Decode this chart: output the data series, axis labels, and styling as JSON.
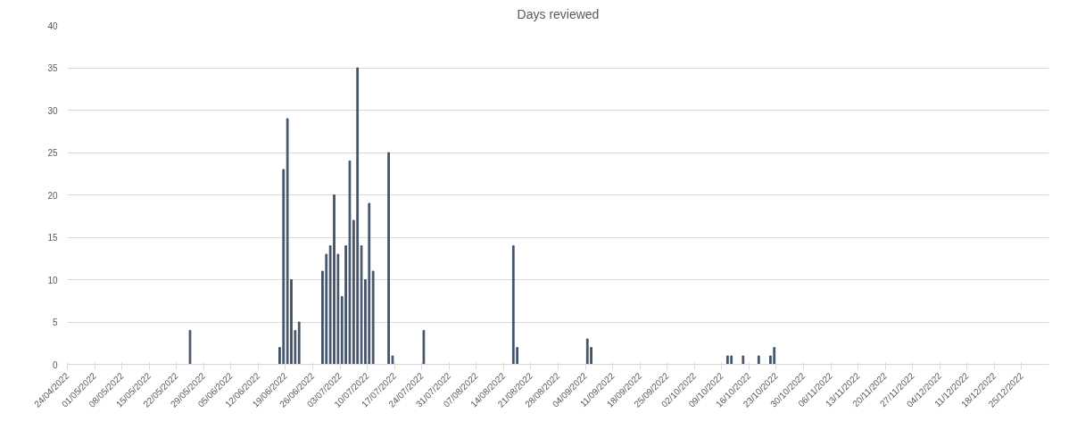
{
  "chart_data": {
    "type": "bar",
    "title": "Days reviewed",
    "x": [
      "2022-05-25",
      "2022-06-17",
      "2022-06-18",
      "2022-06-19",
      "2022-06-20",
      "2022-06-21",
      "2022-06-22",
      "2022-06-28",
      "2022-06-29",
      "2022-06-30",
      "2022-07-01",
      "2022-07-02",
      "2022-07-03",
      "2022-07-04",
      "2022-07-05",
      "2022-07-06",
      "2022-07-07",
      "2022-07-08",
      "2022-07-09",
      "2022-07-10",
      "2022-07-11",
      "2022-07-15",
      "2022-07-16",
      "2022-07-24",
      "2022-08-16",
      "2022-08-17",
      "2022-09-04",
      "2022-09-05",
      "2022-10-10",
      "2022-10-11",
      "2022-10-14",
      "2022-10-18",
      "2022-10-21",
      "2022-10-22"
    ],
    "values": [
      4,
      2,
      23,
      29,
      10,
      4,
      5,
      11,
      13,
      14,
      20,
      13,
      8,
      14,
      24,
      17,
      35,
      14,
      10,
      19,
      11,
      25,
      1,
      4,
      14,
      2,
      3,
      2,
      1,
      1,
      1,
      1,
      1,
      2
    ],
    "color": "#44546a",
    "xlim": [
      "2022-04-24",
      "2023-01-01"
    ],
    "xticks": [
      {
        "value": "2022-04-24",
        "label": "24/04/2022"
      },
      {
        "value": "2022-05-01",
        "label": "01/05/2022"
      },
      {
        "value": "2022-05-08",
        "label": "08/05/2022"
      },
      {
        "value": "2022-05-15",
        "label": "15/05/2022"
      },
      {
        "value": "2022-05-22",
        "label": "22/05/2022"
      },
      {
        "value": "2022-05-29",
        "label": "29/05/2022"
      },
      {
        "value": "2022-06-05",
        "label": "05/06/2022"
      },
      {
        "value": "2022-06-12",
        "label": "12/06/2022"
      },
      {
        "value": "2022-06-19",
        "label": "19/06/2022"
      },
      {
        "value": "2022-06-26",
        "label": "26/06/2022"
      },
      {
        "value": "2022-07-03",
        "label": "03/07/2022"
      },
      {
        "value": "2022-07-10",
        "label": "10/07/2022"
      },
      {
        "value": "2022-07-17",
        "label": "17/07/2022"
      },
      {
        "value": "2022-07-24",
        "label": "24/07/2022"
      },
      {
        "value": "2022-07-31",
        "label": "31/07/2022"
      },
      {
        "value": "2022-08-07",
        "label": "07/08/2022"
      },
      {
        "value": "2022-08-14",
        "label": "14/08/2022"
      },
      {
        "value": "2022-08-21",
        "label": "21/08/2022"
      },
      {
        "value": "2022-08-28",
        "label": "28/08/2022"
      },
      {
        "value": "2022-09-04",
        "label": "04/09/2022"
      },
      {
        "value": "2022-09-11",
        "label": "11/09/2022"
      },
      {
        "value": "2022-09-18",
        "label": "18/09/2022"
      },
      {
        "value": "2022-09-25",
        "label": "25/09/2022"
      },
      {
        "value": "2022-10-02",
        "label": "02/10/2022"
      },
      {
        "value": "2022-10-09",
        "label": "09/10/2022"
      },
      {
        "value": "2022-10-16",
        "label": "16/10/2022"
      },
      {
        "value": "2022-10-23",
        "label": "23/10/2022"
      },
      {
        "value": "2022-10-30",
        "label": "30/10/2022"
      },
      {
        "value": "2022-11-06",
        "label": "06/11/2022"
      },
      {
        "value": "2022-11-13",
        "label": "13/11/2022"
      },
      {
        "value": "2022-11-20",
        "label": "20/11/2022"
      },
      {
        "value": "2022-11-27",
        "label": "27/11/2022"
      },
      {
        "value": "2022-12-04",
        "label": "04/12/2022"
      },
      {
        "value": "2022-12-11",
        "label": "11/12/2022"
      },
      {
        "value": "2022-12-18",
        "label": "18/12/2022"
      },
      {
        "value": "2022-12-25",
        "label": "25/12/2022"
      }
    ],
    "ylim": [
      0,
      40
    ],
    "yticks": [
      0,
      5,
      10,
      15,
      20,
      25,
      30,
      35,
      40
    ],
    "grid": "y"
  }
}
